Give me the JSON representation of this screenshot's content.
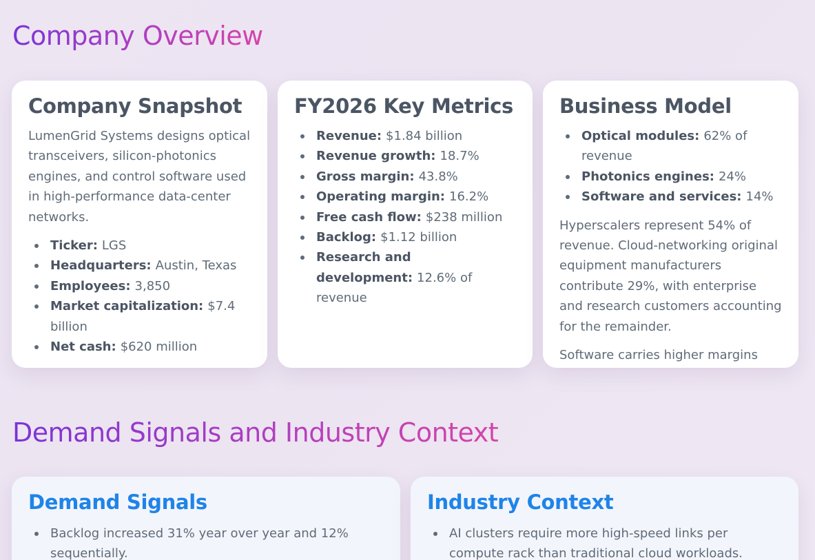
{
  "sections": {
    "overview_title": "Company Overview",
    "demand_title": "Demand Signals and Industry Context"
  },
  "snapshot": {
    "title": "Company Snapshot",
    "description": "LumenGrid Systems designs optical transceivers, silicon-photonics engines, and control software used in high-performance data-center networks.",
    "items": [
      {
        "label": "Ticker:",
        "value": "LGS"
      },
      {
        "label": "Headquarters:",
        "value": "Austin, Texas"
      },
      {
        "label": "Employees:",
        "value": "3,850"
      },
      {
        "label": "Market capitalization:",
        "value": "$7.4 billion"
      },
      {
        "label": "Net cash:",
        "value": "$620 million"
      }
    ]
  },
  "metrics": {
    "title": "FY2026 Key Metrics",
    "items": [
      {
        "label": "Revenue:",
        "value": "$1.84 billion"
      },
      {
        "label": "Revenue growth:",
        "value": "18.7%"
      },
      {
        "label": "Gross margin:",
        "value": "43.8%"
      },
      {
        "label": "Operating margin:",
        "value": "16.2%"
      },
      {
        "label": "Free cash flow:",
        "value": "$238 million"
      },
      {
        "label": "Backlog:",
        "value": "$1.12 billion"
      },
      {
        "label": "Research and development:",
        "value": "12.6% of revenue"
      }
    ]
  },
  "business": {
    "title": "Business Model",
    "items": [
      {
        "label": "Optical modules:",
        "value": "62% of revenue"
      },
      {
        "label": "Photonics engines:",
        "value": "24%"
      },
      {
        "label": "Software and services:",
        "value": "14%"
      }
    ],
    "paragraph1": "Hyperscalers represent 54% of revenue. Cloud-networking original equipment manufacturers contribute 29%, with enterprise and research customers accounting for the remainder.",
    "paragraph2": "Software carries higher margins but"
  },
  "demand": {
    "title": "Demand Signals",
    "items": [
      "Backlog increased 31% year over year and 12% sequentially."
    ]
  },
  "industry": {
    "title": "Industry Context",
    "items": [
      "AI clusters require more high-speed links per compute rack than traditional cloud workloads."
    ]
  }
}
